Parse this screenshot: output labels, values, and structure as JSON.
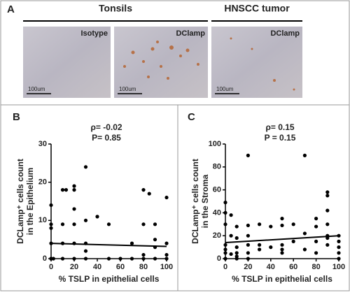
{
  "figure": {
    "panel_a": {
      "label": "A",
      "group_labels": [
        "Tonsils",
        "HNSCC tumor"
      ],
      "image_labels": [
        "Isotype",
        "DClamp",
        "DClamp"
      ],
      "scale_bars": [
        "100um",
        "100um",
        "100um"
      ]
    }
  },
  "chart_data": [
    {
      "type": "scatter",
      "panel_label": "B",
      "annotations": [
        "ρ= -0.02",
        "P= 0.85"
      ],
      "ylabel": [
        "DCLamp⁺ cells count",
        "in the Epithelium"
      ],
      "xlabel": "% TSLP in epithelial cells",
      "x": [
        0,
        0,
        0,
        0,
        0,
        0,
        2,
        10,
        10,
        10,
        10,
        13,
        20,
        20,
        20,
        20,
        20,
        20,
        30,
        30,
        30,
        30,
        30,
        40,
        50,
        50,
        60,
        70,
        70,
        80,
        80,
        80,
        80,
        85,
        90,
        90,
        90,
        90,
        100,
        100,
        100,
        100
      ],
      "values": [
        14,
        9,
        8,
        4,
        0,
        0,
        0,
        18,
        9,
        4,
        0,
        18,
        19,
        18,
        13,
        9,
        4,
        0,
        24,
        10,
        4,
        2,
        0,
        11,
        9,
        0,
        0,
        4,
        0,
        18,
        9,
        1,
        0,
        17,
        9,
        5,
        3,
        0,
        16,
        4,
        1,
        0
      ],
      "color": "#000000",
      "trendline": {
        "x": [
          0,
          100
        ],
        "y": [
          4,
          3.2
        ]
      },
      "xlim": [
        0,
        100
      ],
      "ylim": [
        0,
        30
      ],
      "xticks": [
        0,
        20,
        40,
        60,
        80,
        100
      ],
      "yticks": [
        0,
        10,
        20,
        30
      ]
    },
    {
      "type": "scatter",
      "panel_label": "C",
      "annotations": [
        "ρ= 0.15",
        "P = 0.15"
      ],
      "ylabel": [
        "DCLamp⁺ cells count",
        "in the Stroma"
      ],
      "xlabel": "% TSLP in epithelial cells",
      "x": [
        0,
        0,
        0,
        0,
        0,
        0,
        0,
        5,
        5,
        5,
        10,
        10,
        10,
        10,
        10,
        10,
        20,
        20,
        20,
        20,
        20,
        20,
        30,
        30,
        30,
        40,
        40,
        50,
        50,
        50,
        50,
        50,
        60,
        60,
        70,
        70,
        70,
        80,
        80,
        80,
        80,
        90,
        90,
        90,
        90,
        90,
        90,
        90,
        100,
        100,
        100,
        100,
        100
      ],
      "values": [
        49,
        40,
        30,
        12,
        8,
        5,
        0,
        38,
        20,
        4,
        28,
        18,
        10,
        5,
        2,
        0,
        90,
        29,
        20,
        12,
        5,
        0,
        30,
        12,
        8,
        28,
        10,
        35,
        29,
        12,
        8,
        5,
        30,
        15,
        90,
        22,
        8,
        35,
        28,
        15,
        5,
        58,
        55,
        42,
        30,
        20,
        18,
        12,
        20,
        15,
        10,
        5,
        0
      ],
      "color": "#000000",
      "trendline": {
        "x": [
          0,
          100
        ],
        "y": [
          14,
          20
        ]
      },
      "xlim": [
        0,
        100
      ],
      "ylim": [
        0,
        100
      ],
      "xticks": [
        0,
        20,
        40,
        60,
        80,
        100
      ],
      "yticks": [
        0,
        20,
        40,
        60,
        80,
        100
      ]
    }
  ]
}
